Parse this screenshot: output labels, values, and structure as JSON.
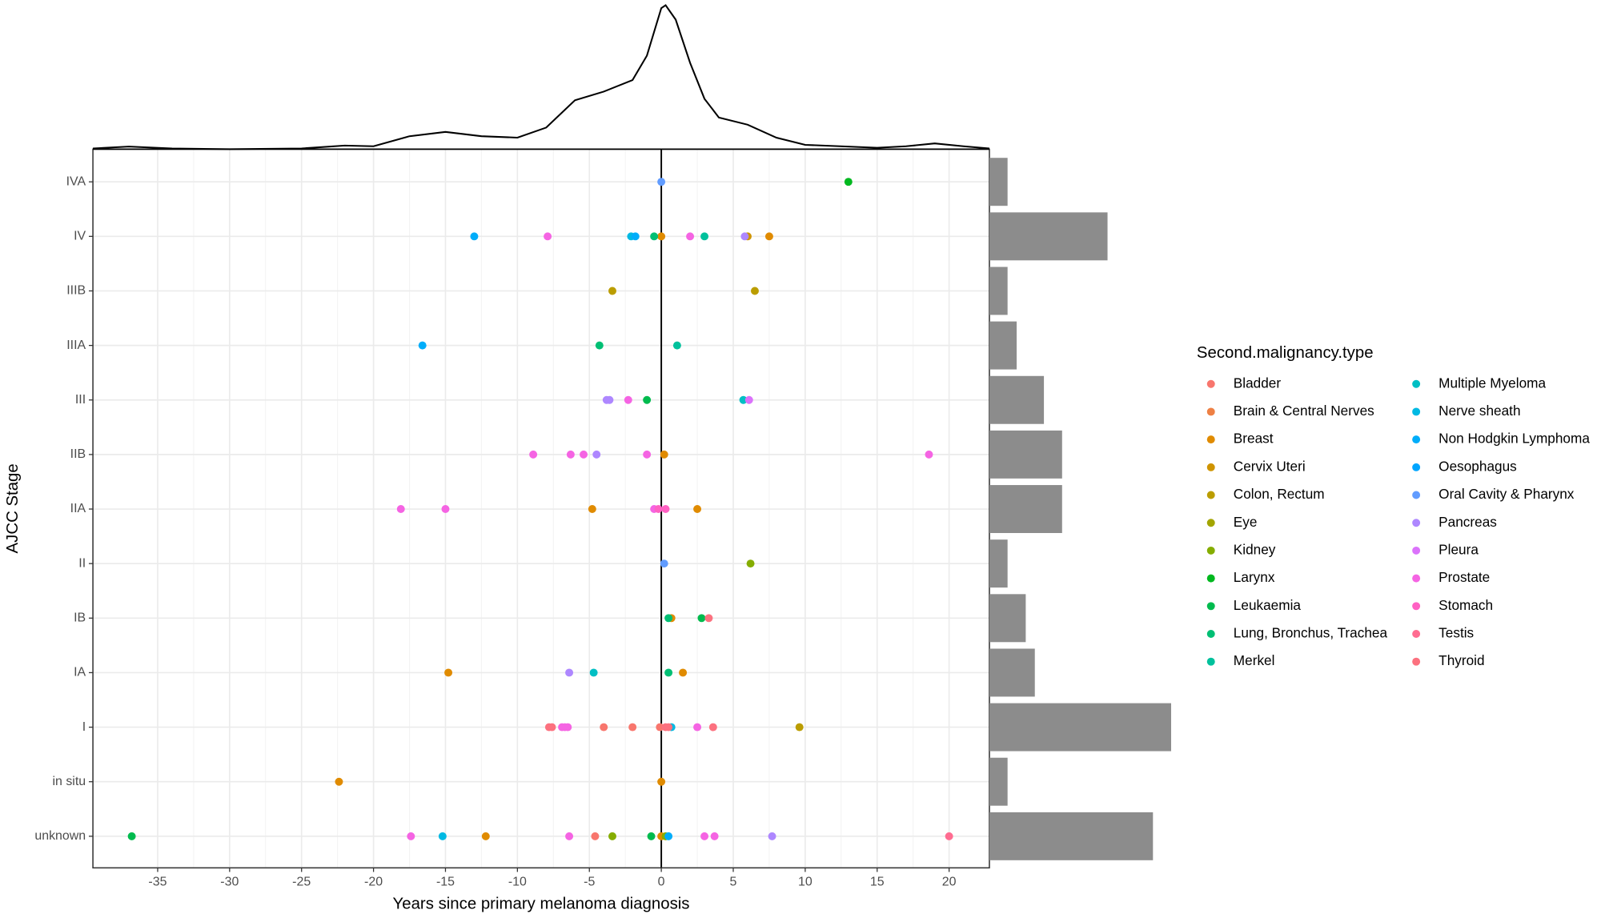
{
  "chart_data": [
    {
      "type": "scatter",
      "x_label": "Years since primary melanoma diagnosis",
      "y_label": "AJCC Stage",
      "legend_title": "Second.malignancy.type",
      "categories": [
        "IVA",
        "IV",
        "IIIB",
        "IIIA",
        "III",
        "IIB",
        "IIA",
        "II",
        "IB",
        "IA",
        "I",
        "in situ",
        "unknown"
      ],
      "xlim": [
        -39.5,
        22.8
      ],
      "xticks": [
        -35,
        -30,
        -25,
        -20,
        -15,
        -10,
        -5,
        0,
        5,
        10,
        15,
        20
      ],
      "reference_line_x": 0,
      "grid": true,
      "series": [
        {
          "name": "Bladder",
          "color": "#F8766D",
          "x": [
            -4,
            -2,
            -0.1,
            -4.6
          ],
          "y": [
            "I",
            "I",
            "I",
            "unknown"
          ]
        },
        {
          "name": "Brain & Central Nerves",
          "color": "#EE8044",
          "x": [],
          "y": []
        },
        {
          "name": "Breast",
          "color": "#E08B00",
          "x": [
            0,
            7.5,
            0.2,
            -4.8,
            2.5,
            0.7,
            -14.8,
            1.5,
            -22.4,
            0,
            -12.2,
            0
          ],
          "y": [
            "IV",
            "IV",
            "IIB",
            "IIA",
            "IIA",
            "IB",
            "IA",
            "IA",
            "in situ",
            "in situ",
            "unknown",
            "unknown"
          ]
        },
        {
          "name": "Cervix Uteri",
          "color": "#CF9400",
          "x": [
            6
          ],
          "y": [
            "IV"
          ]
        },
        {
          "name": "Colon, Rectum",
          "color": "#BB9D00",
          "x": [
            -3.4,
            6.5,
            9.6
          ],
          "y": [
            "IIIB",
            "IIIB",
            "I"
          ]
        },
        {
          "name": "Eye",
          "color": "#A3A500",
          "x": [],
          "y": []
        },
        {
          "name": "Kidney",
          "color": "#85AD00",
          "x": [
            6.2,
            -3.4,
            0.3
          ],
          "y": [
            "II",
            "unknown",
            "unknown"
          ]
        },
        {
          "name": "Larynx",
          "color": "#00B81F",
          "x": [
            13
          ],
          "y": [
            "IVA"
          ]
        },
        {
          "name": "Leukaemia",
          "color": "#00BB4E",
          "x": [
            -1,
            2.8,
            -36.8,
            -0.7
          ],
          "y": [
            "III",
            "IB",
            "unknown",
            "unknown"
          ]
        },
        {
          "name": "Lung, Bronchus, Trachea",
          "color": "#00BF74",
          "x": [
            -0.5,
            -4.3,
            0.5,
            0.5
          ],
          "y": [
            "IV",
            "IIIA",
            "IB",
            "IA"
          ]
        },
        {
          "name": "Merkel",
          "color": "#00C19C",
          "x": [
            3,
            1.1
          ],
          "y": [
            "IV",
            "IIIA"
          ]
        },
        {
          "name": "Multiple Myeloma",
          "color": "#00BFC4",
          "x": [
            5.7,
            -4.7
          ],
          "y": [
            "III",
            "IA"
          ]
        },
        {
          "name": "Nerve sheath",
          "color": "#00B9E3",
          "x": [
            -2.1,
            0.7,
            -15.2
          ],
          "y": [
            "IV",
            "I",
            "unknown"
          ]
        },
        {
          "name": "Non Hodgkin Lymphoma",
          "color": "#00ADFA",
          "x": [
            -13,
            -1.8,
            -16.6,
            0.5
          ],
          "y": [
            "IV",
            "IV",
            "IIIA",
            "unknown"
          ]
        },
        {
          "name": "Oesophagus",
          "color": "#00A5FF",
          "x": [],
          "y": []
        },
        {
          "name": "Oral Cavity & Pharynx",
          "color": "#619CFF",
          "x": [
            0,
            0.2
          ],
          "y": [
            "IVA",
            "II"
          ]
        },
        {
          "name": "Pancreas",
          "color": "#AE87FF",
          "x": [
            5.8,
            -3.8,
            -3.6,
            -4.5,
            -6.4,
            7.7
          ],
          "y": [
            "IV",
            "III",
            "III",
            "IIB",
            "IA",
            "unknown"
          ]
        },
        {
          "name": "Pleura",
          "color": "#DB72FB",
          "x": [
            6.1
          ],
          "y": [
            "III"
          ]
        },
        {
          "name": "Prostate",
          "color": "#F564E3",
          "x": [
            -7.9,
            2,
            -2.3,
            -8.9,
            -6.3,
            -5.4,
            -1,
            18.6,
            -18.1,
            -15,
            -0.5,
            -6.9,
            -6.7,
            -6.5,
            2.5,
            -17.4,
            -6.4,
            3,
            3.7
          ],
          "y": [
            "IV",
            "IV",
            "III",
            "IIB",
            "IIB",
            "IIB",
            "IIB",
            "IIB",
            "IIA",
            "IIA",
            "IIA",
            "I",
            "I",
            "I",
            "I",
            "unknown",
            "unknown",
            "unknown",
            "unknown"
          ]
        },
        {
          "name": "Stomach",
          "color": "#FF61C3",
          "x": [
            -0.2,
            0.3
          ],
          "y": [
            "IIA",
            "IIA"
          ]
        },
        {
          "name": "Testis",
          "color": "#FF6C91",
          "x": [
            20
          ],
          "y": [
            "unknown"
          ]
        },
        {
          "name": "Thyroid",
          "color": "#FC717F",
          "x": [
            3.3,
            -7.8,
            -7.6,
            0.3,
            0.5,
            3.6
          ],
          "y": [
            "IB",
            "I",
            "I",
            "I",
            "I",
            "I"
          ]
        }
      ]
    },
    {
      "type": "line",
      "color": "#000000",
      "x": [
        -39.5,
        -37,
        -34,
        -30,
        -25,
        -22,
        -20,
        -17.5,
        -15,
        -12.5,
        -10,
        -8,
        -6,
        -4,
        -2,
        -1,
        0,
        0.3,
        1,
        2,
        3,
        4,
        6,
        8,
        10,
        15,
        17,
        19,
        21,
        22.8
      ],
      "y": [
        0.005,
        0.018,
        0.005,
        0,
        0.005,
        0.025,
        0.02,
        0.09,
        0.12,
        0.09,
        0.08,
        0.15,
        0.34,
        0.4,
        0.48,
        0.65,
        0.98,
        1,
        0.9,
        0.6,
        0.35,
        0.22,
        0.17,
        0.08,
        0.03,
        0.01,
        0.02,
        0.04,
        0.02,
        0.005
      ],
      "xlim": [
        -39.5,
        22.8
      ],
      "ylim": [
        0,
        1
      ]
    },
    {
      "type": "bar",
      "orientation": "horizontal",
      "color": "#8C8C8C",
      "categories": [
        "IVA",
        "IV",
        "IIIB",
        "IIIA",
        "III",
        "IIB",
        "IIA",
        "II",
        "IB",
        "IA",
        "I",
        "in situ",
        "unknown"
      ],
      "values": [
        2,
        13,
        2,
        3,
        6,
        8,
        8,
        2,
        4,
        5,
        20,
        2,
        18
      ],
      "xlim": [
        0,
        20
      ]
    }
  ]
}
